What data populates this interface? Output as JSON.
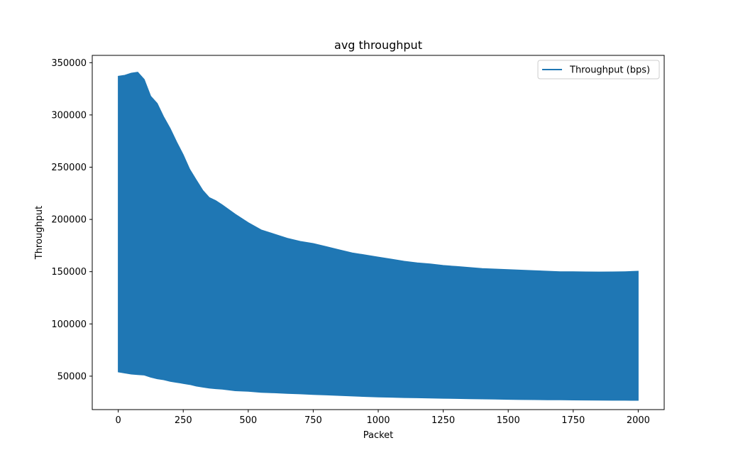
{
  "chart_data": {
    "type": "line",
    "title": "avg throughput",
    "xlabel": "Packet",
    "ylabel": "Throughput",
    "xlim": [
      -100,
      2100
    ],
    "ylim": [
      18000,
      357000
    ],
    "xticks": [
      0,
      250,
      500,
      750,
      1000,
      1250,
      1500,
      1750,
      2000
    ],
    "yticks": [
      50000,
      100000,
      150000,
      200000,
      250000,
      300000,
      350000
    ],
    "grid": false,
    "legend": "top-right",
    "series": [
      {
        "name": "Throughput (bps)",
        "color": "#1f77b4",
        "x": [
          0,
          25,
          50,
          75,
          100,
          125,
          150,
          175,
          200,
          225,
          250,
          275,
          300,
          325,
          350,
          375,
          400,
          450,
          500,
          550,
          600,
          650,
          700,
          750,
          800,
          850,
          900,
          950,
          1000,
          1050,
          1100,
          1150,
          1200,
          1250,
          1300,
          1350,
          1400,
          1450,
          1500,
          1550,
          1600,
          1650,
          1700,
          1750,
          1800,
          1850,
          1900,
          1950,
          2000
        ],
        "upper": [
          337000,
          338000,
          340000,
          341000,
          334000,
          318000,
          311000,
          298000,
          287000,
          274000,
          262000,
          248000,
          238000,
          228000,
          221000,
          218000,
          214000,
          205000,
          197000,
          190000,
          186000,
          182000,
          179000,
          177000,
          174000,
          171000,
          168000,
          166000,
          164000,
          162000,
          160000,
          158500,
          157500,
          156000,
          155000,
          154000,
          153000,
          152500,
          152000,
          151500,
          151000,
          150500,
          150000,
          150000,
          149800,
          149700,
          149800,
          150000,
          150500
        ],
        "lower": [
          54000,
          53000,
          52000,
          51500,
          51000,
          49000,
          47500,
          46500,
          45000,
          44000,
          43000,
          42000,
          40500,
          39500,
          38500,
          38000,
          37500,
          36000,
          35500,
          34500,
          34000,
          33500,
          33000,
          32500,
          32000,
          31500,
          31000,
          30500,
          30000,
          29800,
          29500,
          29300,
          29000,
          28800,
          28600,
          28400,
          28200,
          28000,
          27800,
          27600,
          27500,
          27400,
          27300,
          27200,
          27100,
          27000,
          26900,
          26900,
          26800
        ]
      }
    ]
  }
}
